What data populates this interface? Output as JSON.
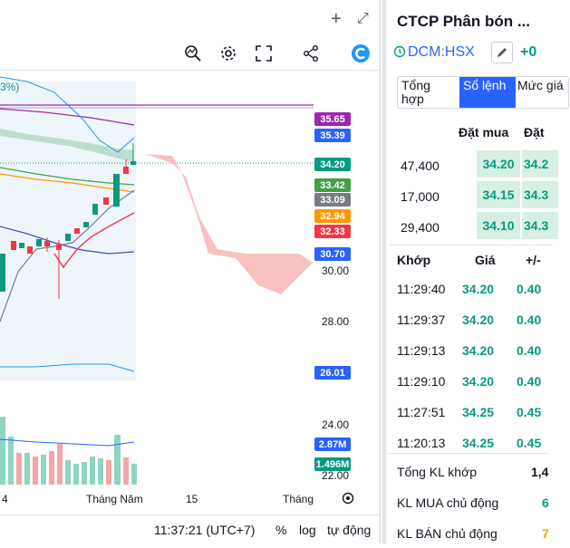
{
  "window": {
    "add_icon": "plus-icon",
    "expand_icon": "expand-icon"
  },
  "toolbar": {
    "icons": [
      "chart-zoom-icon",
      "gear-icon",
      "fullscreen-icon",
      "share-icon",
      "logo-icon"
    ]
  },
  "chart": {
    "partial_label": "3%)",
    "price_tags": [
      {
        "value": "35.65",
        "color": "#9c27b0"
      },
      {
        "value": "35.39",
        "color": "#2962ff"
      },
      {
        "value": "34.20",
        "color": "#089981"
      },
      {
        "value": "33.42",
        "color": "#43a047"
      },
      {
        "value": "33.09",
        "color": "#787b86"
      },
      {
        "value": "32.94",
        "color": "#ff9800"
      },
      {
        "value": "32.33",
        "color": "#f23645"
      },
      {
        "value": "30.70",
        "color": "#2962ff"
      },
      {
        "value": "26.01",
        "color": "#2962ff"
      },
      {
        "value": "2.87M",
        "color": "#2962ff"
      },
      {
        "value": "1.496M",
        "color": "#089981"
      }
    ],
    "axis_ticks": [
      "30.00",
      "28.00",
      "24.00",
      "22.00"
    ],
    "x_labels": [
      "4",
      "Tháng Năm",
      "15",
      "Tháng"
    ],
    "settings_icon": "settings-circle-icon"
  },
  "status_bar": {
    "time": "11:37:21 (UTC+7)",
    "percent": "%",
    "log": "log",
    "auto": "tự động"
  },
  "panel": {
    "company": "CTCP Phân bón ...",
    "ticker": "DCM:HSX",
    "change": "+0",
    "tabs": [
      "Tổng hợp",
      "Sổ lệnh",
      "Mức giá"
    ],
    "ob_headers": {
      "bid": "Đặt mua",
      "ask": "Đặt"
    },
    "orderbook": [
      {
        "vol": "47,400",
        "bid": "34.20",
        "ask": "34.2"
      },
      {
        "vol": "17,000",
        "bid": "34.15",
        "ask": "34.3"
      },
      {
        "vol": "29,400",
        "bid": "34.10",
        "ask": "34.3"
      }
    ],
    "trade_headers": {
      "time": "Khớp",
      "price": "Giá",
      "chg": "+/-"
    },
    "trades": [
      {
        "time": "11:29:40",
        "price": "34.20",
        "chg": "0.40"
      },
      {
        "time": "11:29:37",
        "price": "34.20",
        "chg": "0.40"
      },
      {
        "time": "11:29:13",
        "price": "34.20",
        "chg": "0.40"
      },
      {
        "time": "11:29:10",
        "price": "34.20",
        "chg": "0.40"
      },
      {
        "time": "11:27:51",
        "price": "34.25",
        "chg": "0.45"
      },
      {
        "time": "11:20:13",
        "price": "34.25",
        "chg": "0.45"
      }
    ],
    "summary": [
      {
        "label": "Tổng KL khớp",
        "value": "1,4"
      },
      {
        "label": "KL MUA chủ động",
        "value": "6"
      },
      {
        "label": "KL BÁN chủ động",
        "value": "7"
      }
    ]
  }
}
